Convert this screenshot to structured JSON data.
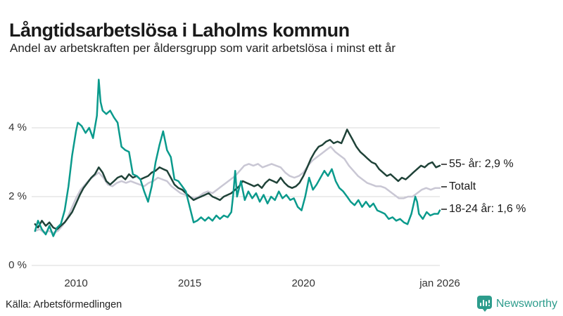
{
  "header": {
    "title": "Långtidsarbetslösa i Laholms kommun",
    "subtitle": "Andel av arbetskraften per åldersgrupp som varit arbetslösa i minst ett år"
  },
  "footer": {
    "source": "Källa: Arbetsförmedlingen",
    "brand_name": "Newsworthy",
    "brand_color": "#2d9c8c",
    "brand_icon": "speech-bubble-bar-chart"
  },
  "chart_data": {
    "type": "line",
    "title": "Långtidsarbetslösa i Laholms kommun",
    "xlabel": "",
    "ylabel": "",
    "unit": "%",
    "grid": "horizontal-only",
    "grid_color": "#d9d9d9",
    "background": "#ffffff",
    "legend_position": "right-end-labels",
    "xlim": [
      2008.05,
      2026.0
    ],
    "ylim": [
      0,
      5.55
    ],
    "x_ticks": [
      {
        "value": 2010,
        "label": "2010"
      },
      {
        "value": 2015,
        "label": "2015"
      },
      {
        "value": 2020,
        "label": "2020"
      },
      {
        "value": 2026,
        "label": "jan 2026"
      }
    ],
    "y_ticks": [
      {
        "value": 0,
        "label": "0 %"
      },
      {
        "value": 2,
        "label": "2 %"
      },
      {
        "value": 4,
        "label": "4 %"
      }
    ],
    "series": [
      {
        "name": "Totalt",
        "end_label": "Totalt",
        "end_value": 2.25,
        "color": "#c9c7d4",
        "x": [
          2008.2,
          2008.4,
          2008.6,
          2008.8,
          2009.0,
          2009.2,
          2009.4,
          2009.6,
          2009.8,
          2010.0,
          2010.2,
          2010.4,
          2010.6,
          2010.8,
          2011.0,
          2011.2,
          2011.4,
          2011.6,
          2011.8,
          2012.0,
          2012.2,
          2012.4,
          2012.6,
          2012.8,
          2013.0,
          2013.2,
          2013.4,
          2013.6,
          2013.8,
          2014.0,
          2014.2,
          2014.4,
          2014.6,
          2014.8,
          2015.0,
          2015.2,
          2015.4,
          2015.6,
          2015.8,
          2016.0,
          2016.2,
          2016.4,
          2016.6,
          2016.8,
          2017.0,
          2017.2,
          2017.4,
          2017.6,
          2017.8,
          2018.0,
          2018.2,
          2018.4,
          2018.6,
          2018.8,
          2019.0,
          2019.2,
          2019.4,
          2019.6,
          2019.8,
          2020.0,
          2020.2,
          2020.4,
          2020.6,
          2020.8,
          2021.0,
          2021.2,
          2021.4,
          2021.6,
          2021.8,
          2022.0,
          2022.2,
          2022.4,
          2022.6,
          2022.8,
          2023.0,
          2023.2,
          2023.4,
          2023.6,
          2023.8,
          2024.0,
          2024.2,
          2024.4,
          2024.6,
          2024.8,
          2025.0,
          2025.2,
          2025.4,
          2025.6,
          2025.8,
          2026.0
        ],
        "values": [
          1.0,
          1.05,
          0.95,
          1.0,
          0.95,
          1.0,
          1.15,
          1.35,
          1.65,
          1.95,
          2.2,
          2.35,
          2.5,
          2.6,
          2.7,
          2.55,
          2.35,
          2.3,
          2.4,
          2.45,
          2.4,
          2.45,
          2.4,
          2.35,
          2.3,
          2.4,
          2.45,
          2.55,
          2.5,
          2.45,
          2.3,
          2.2,
          2.1,
          2.05,
          2.0,
          1.95,
          2.0,
          2.1,
          2.15,
          2.1,
          2.2,
          2.3,
          2.4,
          2.5,
          2.6,
          2.75,
          2.9,
          2.95,
          2.9,
          2.95,
          2.85,
          2.9,
          2.95,
          2.9,
          2.85,
          2.7,
          2.6,
          2.55,
          2.6,
          2.7,
          2.9,
          3.05,
          3.15,
          3.25,
          3.35,
          3.45,
          3.3,
          3.2,
          3.1,
          2.9,
          2.75,
          2.6,
          2.5,
          2.4,
          2.35,
          2.3,
          2.3,
          2.25,
          2.15,
          2.05,
          1.95,
          1.95,
          2.0,
          2.0,
          2.1,
          2.2,
          2.25,
          2.2,
          2.25,
          2.25
        ]
      },
      {
        "name": "55- år",
        "end_label": "55- år: 2,9 %",
        "end_value": 2.9,
        "color": "#1f4238",
        "x": [
          2008.2,
          2008.33,
          2008.5,
          2008.67,
          2008.83,
          2009.0,
          2009.17,
          2009.33,
          2009.5,
          2009.67,
          2009.83,
          2010.0,
          2010.17,
          2010.33,
          2010.5,
          2010.67,
          2010.83,
          2011.0,
          2011.17,
          2011.33,
          2011.5,
          2011.67,
          2011.83,
          2012.0,
          2012.17,
          2012.33,
          2012.5,
          2012.67,
          2012.83,
          2013.0,
          2013.17,
          2013.33,
          2013.5,
          2013.67,
          2013.83,
          2014.0,
          2014.17,
          2014.33,
          2014.5,
          2014.67,
          2014.83,
          2015.0,
          2015.17,
          2015.33,
          2015.5,
          2015.67,
          2015.83,
          2016.0,
          2016.17,
          2016.33,
          2016.5,
          2016.67,
          2016.83,
          2017.0,
          2017.17,
          2017.33,
          2017.5,
          2017.67,
          2017.83,
          2018.0,
          2018.17,
          2018.33,
          2018.5,
          2018.67,
          2018.83,
          2019.0,
          2019.17,
          2019.33,
          2019.5,
          2019.67,
          2019.83,
          2020.0,
          2020.17,
          2020.33,
          2020.5,
          2020.67,
          2020.83,
          2021.0,
          2021.17,
          2021.33,
          2021.5,
          2021.67,
          2021.83,
          2021.92,
          2022.0,
          2022.17,
          2022.33,
          2022.5,
          2022.67,
          2022.83,
          2023.0,
          2023.17,
          2023.33,
          2023.5,
          2023.67,
          2023.83,
          2024.0,
          2024.17,
          2024.33,
          2024.5,
          2024.67,
          2024.83,
          2025.0,
          2025.17,
          2025.33,
          2025.5,
          2025.67,
          2025.83,
          2026.0
        ],
        "values": [
          1.2,
          1.1,
          1.3,
          1.15,
          1.25,
          1.1,
          1.05,
          1.15,
          1.25,
          1.4,
          1.55,
          1.8,
          2.05,
          2.25,
          2.4,
          2.55,
          2.65,
          2.85,
          2.7,
          2.45,
          2.35,
          2.45,
          2.55,
          2.6,
          2.5,
          2.65,
          2.55,
          2.6,
          2.5,
          2.55,
          2.6,
          2.7,
          2.75,
          2.85,
          2.8,
          2.75,
          2.55,
          2.35,
          2.25,
          2.2,
          2.1,
          2.0,
          1.9,
          1.95,
          2.0,
          2.05,
          2.1,
          2.0,
          1.95,
          1.9,
          2.0,
          2.05,
          2.1,
          2.2,
          2.3,
          2.45,
          2.4,
          2.35,
          2.3,
          2.35,
          2.25,
          2.4,
          2.5,
          2.45,
          2.4,
          2.55,
          2.4,
          2.3,
          2.25,
          2.3,
          2.4,
          2.6,
          2.85,
          3.1,
          3.3,
          3.45,
          3.5,
          3.6,
          3.65,
          3.55,
          3.6,
          3.55,
          3.8,
          3.95,
          3.85,
          3.65,
          3.45,
          3.3,
          3.2,
          3.1,
          3.0,
          2.95,
          2.8,
          2.7,
          2.6,
          2.65,
          2.55,
          2.45,
          2.55,
          2.5,
          2.6,
          2.7,
          2.8,
          2.9,
          2.85,
          2.95,
          3.0,
          2.85,
          2.9
        ]
      },
      {
        "name": "18-24 år",
        "end_label": "18-24 år: 1,6 %",
        "end_value": 1.6,
        "color": "#0a9a8c",
        "x": [
          2008.2,
          2008.33,
          2008.5,
          2008.67,
          2008.83,
          2009.0,
          2009.17,
          2009.33,
          2009.5,
          2009.67,
          2009.83,
          2010.0,
          2010.08,
          2010.25,
          2010.42,
          2010.58,
          2010.75,
          2010.92,
          2011.0,
          2011.08,
          2011.17,
          2011.33,
          2011.5,
          2011.67,
          2011.83,
          2012.0,
          2012.17,
          2012.33,
          2012.5,
          2012.67,
          2012.83,
          2013.0,
          2013.17,
          2013.33,
          2013.5,
          2013.67,
          2013.83,
          2014.0,
          2014.17,
          2014.33,
          2014.5,
          2014.67,
          2014.83,
          2015.0,
          2015.17,
          2015.33,
          2015.5,
          2015.67,
          2015.83,
          2016.0,
          2016.17,
          2016.33,
          2016.5,
          2016.67,
          2016.83,
          2016.92,
          2017.0,
          2017.08,
          2017.25,
          2017.42,
          2017.58,
          2017.75,
          2017.92,
          2018.08,
          2018.25,
          2018.42,
          2018.58,
          2018.75,
          2018.92,
          2019.08,
          2019.25,
          2019.42,
          2019.58,
          2019.75,
          2019.92,
          2020.08,
          2020.25,
          2020.42,
          2020.58,
          2020.75,
          2020.92,
          2021.08,
          2021.25,
          2021.42,
          2021.58,
          2021.75,
          2021.92,
          2022.08,
          2022.25,
          2022.42,
          2022.58,
          2022.75,
          2022.92,
          2023.08,
          2023.25,
          2023.42,
          2023.58,
          2023.75,
          2023.92,
          2024.08,
          2024.25,
          2024.42,
          2024.58,
          2024.75,
          2024.92,
          2025.0,
          2025.08,
          2025.25,
          2025.42,
          2025.58,
          2025.75,
          2025.92,
          2026.0
        ],
        "values": [
          1.0,
          1.3,
          1.05,
          0.9,
          1.15,
          0.85,
          1.1,
          1.2,
          1.6,
          2.3,
          3.2,
          3.9,
          4.15,
          4.05,
          3.85,
          4.0,
          3.7,
          4.35,
          5.4,
          4.75,
          4.5,
          4.4,
          4.5,
          4.3,
          4.15,
          3.45,
          3.35,
          3.3,
          2.65,
          2.6,
          2.5,
          2.15,
          1.85,
          2.3,
          3.0,
          3.5,
          3.9,
          3.35,
          3.15,
          2.5,
          2.45,
          2.3,
          2.15,
          1.7,
          1.25,
          1.3,
          1.4,
          1.3,
          1.4,
          1.3,
          1.45,
          1.35,
          1.45,
          1.4,
          1.55,
          2.1,
          2.75,
          2.0,
          2.45,
          1.9,
          2.15,
          1.95,
          2.1,
          1.85,
          2.05,
          1.8,
          2.0,
          1.9,
          2.15,
          1.95,
          2.05,
          1.9,
          1.95,
          1.7,
          1.6,
          2.0,
          2.55,
          2.2,
          2.35,
          2.55,
          2.75,
          2.6,
          2.8,
          2.45,
          2.25,
          2.15,
          2.0,
          1.85,
          1.75,
          1.9,
          1.7,
          1.85,
          1.7,
          1.8,
          1.6,
          1.55,
          1.5,
          1.35,
          1.4,
          1.3,
          1.35,
          1.25,
          1.2,
          1.5,
          2.0,
          1.85,
          1.5,
          1.35,
          1.55,
          1.45,
          1.5,
          1.5,
          1.6
        ]
      }
    ]
  }
}
